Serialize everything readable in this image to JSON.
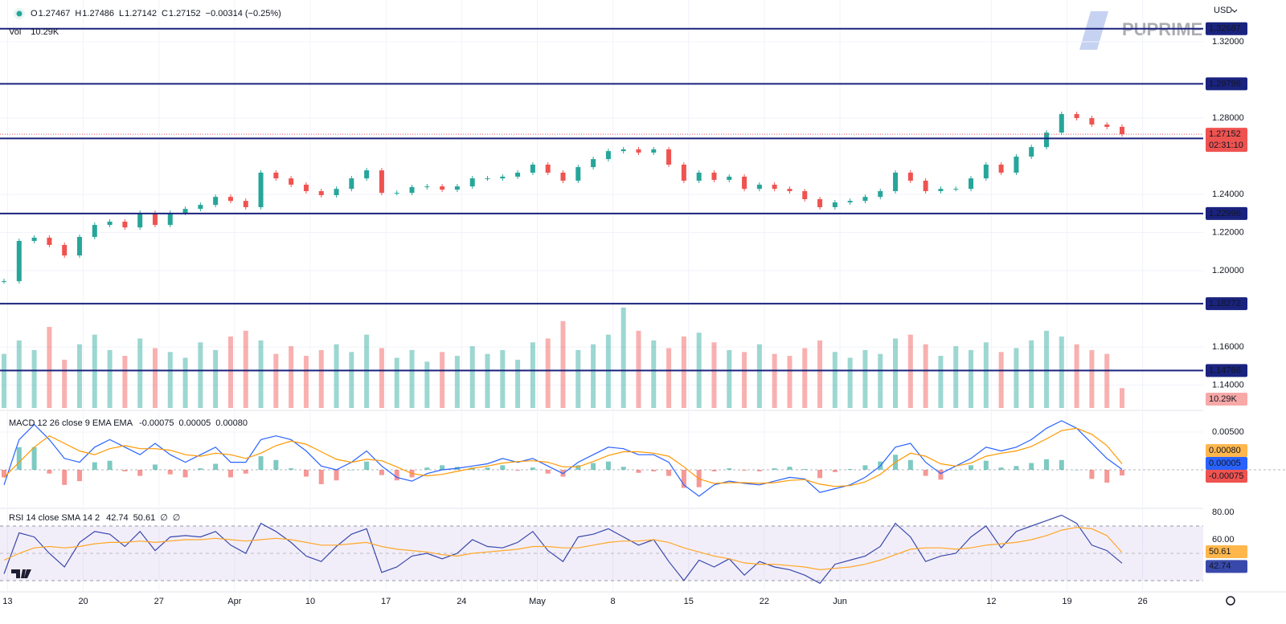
{
  "chart_data": [
    {
      "type": "candlestick",
      "legend": [
        {
          "label": "O",
          "value": "1.27467"
        },
        {
          "label": "H",
          "value": "1.27486"
        },
        {
          "label": "L",
          "value": "1.27142"
        },
        {
          "label": "C",
          "value": "1.27152"
        }
      ],
      "change": "−0.00314 (−0.25%)",
      "volume_title": "Vol",
      "volume_last_label": "10.29K",
      "currency": "USD",
      "watermark": "PUPRIME",
      "countdown": "02:31:10",
      "up_color": "#26a69a",
      "down_color": "#ef5350",
      "level_color": "#1a237e",
      "closes": [
        1.1945,
        1.2156,
        1.2173,
        1.2135,
        1.208,
        1.2177,
        1.224,
        1.2257,
        1.2227,
        1.2303,
        1.224,
        1.2303,
        1.2324,
        1.2345,
        1.2387,
        1.2366,
        1.2333,
        1.2514,
        1.2484,
        1.2451,
        1.2417,
        1.2396,
        1.2429,
        1.2484,
        1.2526,
        1.2408,
        1.2408,
        1.2438,
        1.2442,
        1.2425,
        1.2442,
        1.2484,
        1.2484,
        1.2493,
        1.2514,
        1.2556,
        1.2514,
        1.2472,
        1.2543,
        1.2585,
        1.2627,
        1.2636,
        1.2619,
        1.2636,
        1.2556,
        1.2472,
        1.2514,
        1.2476,
        1.2493,
        1.2429,
        1.2451,
        1.2429,
        1.2417,
        1.2375,
        1.2333,
        1.2358,
        1.2366,
        1.2387,
        1.2417,
        1.2514,
        1.2472,
        1.2417,
        1.2429,
        1.2429,
        1.2484,
        1.2556,
        1.2514,
        1.2598,
        1.2648,
        1.2724,
        1.2821,
        1.28,
        1.2766,
        1.2754,
        1.27152
      ],
      "volumes": [
        28,
        35,
        30,
        42,
        25,
        33,
        38,
        30,
        27,
        36,
        31,
        29,
        26,
        34,
        30,
        37,
        40,
        35,
        28,
        32,
        27,
        30,
        33,
        29,
        38,
        31,
        26,
        30,
        24,
        29,
        27,
        32,
        28,
        30,
        25,
        34,
        36,
        45,
        30,
        33,
        38,
        52,
        40,
        35,
        31,
        37,
        39,
        34,
        30,
        29,
        33,
        28,
        27,
        31,
        35,
        29,
        26,
        30,
        28,
        36,
        38,
        33,
        27,
        32,
        30,
        34,
        29,
        31,
        35,
        40,
        37,
        33,
        30,
        28,
        10.29
      ],
      "levels": [
        1.32687,
        1.29796,
        1.26931,
        1.22996,
        1.18272,
        1.14766
      ],
      "ylim": [
        1.1272,
        1.3419
      ],
      "yticks": [
        {
          "value": 1.32,
          "label": "1.32000"
        },
        {
          "value": 1.28,
          "label": "1.28000"
        },
        {
          "value": 1.24,
          "label": "1.24000"
        },
        {
          "value": 1.22,
          "label": "1.22000"
        },
        {
          "value": 1.2,
          "label": "1.20000"
        },
        {
          "value": 1.16,
          "label": "1.16000"
        },
        {
          "value": 1.14,
          "label": "1.14000"
        }
      ],
      "xlim": [
        -0.1,
        15.8
      ],
      "xticks": [
        {
          "value": 0,
          "label": "13"
        },
        {
          "value": 1,
          "label": "20"
        },
        {
          "value": 2,
          "label": "27"
        },
        {
          "value": 3,
          "label": "Apr"
        },
        {
          "value": 4,
          "label": "10"
        },
        {
          "value": 5,
          "label": "17"
        },
        {
          "value": 6,
          "label": "24"
        },
        {
          "value": 7,
          "label": "May"
        },
        {
          "value": 8,
          "label": "8"
        },
        {
          "value": 9,
          "label": "15"
        },
        {
          "value": 10,
          "label": "22"
        },
        {
          "value": 11,
          "label": "Jun"
        },
        {
          "value": 13,
          "label": "12"
        },
        {
          "value": 14,
          "label": "19"
        },
        {
          "value": 15,
          "label": "26"
        }
      ],
      "grid": true
    },
    {
      "type": "macd",
      "title": "MACD 12 26 close 9 EMA EMA",
      "ylim": [
        -0.005,
        0.00777
      ],
      "yticks": [
        {
          "value": 0.005,
          "label": "0.00500"
        }
      ],
      "zero_line": 0,
      "series": [
        {
          "kind": "histogram",
          "color": "#ef5350",
          "up_color": "#26a69a",
          "last_label": "-0.00075",
          "values": [
            -0.001,
            0.003,
            0.003,
            -0.0005,
            -0.002,
            -0.0015,
            0.001,
            0.0012,
            -0.0002,
            -0.0008,
            0.0007,
            -0.0006,
            -0.001,
            0.0002,
            0.0008,
            -0.001,
            -0.0005,
            0.0018,
            0.0013,
            0.0002,
            -0.0009,
            -0.0019,
            -0.0014,
            0,
            0.0011,
            -0.0007,
            -0.0014,
            -0.001,
            0.0003,
            0.0006,
            0.0004,
            0.0003,
            0.0003,
            0.0006,
            -0.0001,
            0.0003,
            -0.0005,
            -0.0009,
            0.0006,
            0.0009,
            0.0011,
            0.0004,
            -0.0004,
            -0.0002,
            -0.0008,
            -0.0024,
            -0.0023,
            -0.0002,
            0.0002,
            -0.0001,
            -0.0002,
            0.0002,
            0.0004,
            0.0001,
            -0.0011,
            -0.0003,
            0.0001,
            0.0006,
            0.0011,
            0.002,
            0.0013,
            -0.0008,
            -0.0013,
            0,
            0.0006,
            0.0012,
            0.0003,
            0.0005,
            0.0009,
            0.0014,
            0.0013,
            0,
            -0.0012,
            -0.0017,
            -0.00075
          ]
        },
        {
          "kind": "line",
          "color": "#2962ff",
          "last_label": "0.00005",
          "values": [
            -0.002,
            0.004,
            0.006,
            0.004,
            0.0015,
            0.001,
            0.003,
            0.004,
            0.003,
            0.002,
            0.0035,
            0.002,
            0.001,
            0.002,
            0.003,
            0.001,
            0.001,
            0.004,
            0.0045,
            0.004,
            0.0025,
            0.0005,
            0,
            0.001,
            0.0025,
            0.0005,
            -0.001,
            -0.0015,
            -0.0005,
            0,
            0.0002,
            0.0005,
            0.0008,
            0.0015,
            0.001,
            0.0015,
            0.0005,
            -0.0005,
            0.001,
            0.002,
            0.003,
            0.0028,
            0.002,
            0.002,
            0.001,
            -0.002,
            -0.0035,
            -0.002,
            -0.0015,
            -0.0018,
            -0.002,
            -0.0015,
            -0.001,
            -0.0012,
            -0.003,
            -0.0025,
            -0.002,
            -0.001,
            0.0005,
            0.003,
            0.0035,
            0.001,
            -0.0005,
            0.0005,
            0.0015,
            0.003,
            0.0025,
            0.003,
            0.004,
            0.0055,
            0.0065,
            0.0055,
            0.0035,
            0.0015,
            5e-05
          ]
        },
        {
          "kind": "line",
          "color": "#ff9800",
          "last_label": "0.00080",
          "values": [
            -0.001,
            0.001,
            0.003,
            0.0045,
            0.0035,
            0.0025,
            0.002,
            0.0028,
            0.0032,
            0.0028,
            0.0028,
            0.0026,
            0.002,
            0.0018,
            0.0022,
            0.002,
            0.0015,
            0.0022,
            0.0032,
            0.0038,
            0.0034,
            0.0024,
            0.0014,
            0.001,
            0.0014,
            0.0012,
            0.0004,
            -0.0005,
            -0.0008,
            -0.0006,
            -0.0002,
            0.0002,
            0.0005,
            0.0009,
            0.0011,
            0.0012,
            0.001,
            0.0004,
            0.0004,
            0.0011,
            0.0019,
            0.0024,
            0.0024,
            0.0022,
            0.0018,
            0.0004,
            -0.0012,
            -0.0018,
            -0.0017,
            -0.0017,
            -0.0018,
            -0.0017,
            -0.0014,
            -0.0013,
            -0.0019,
            -0.0022,
            -0.0021,
            -0.0016,
            -0.0006,
            0.001,
            0.0022,
            0.0018,
            0.0008,
            0.0005,
            0.0009,
            0.0018,
            0.0022,
            0.0025,
            0.0031,
            0.0041,
            0.0052,
            0.0055,
            0.0047,
            0.0032,
            0.0008
          ]
        }
      ]
    },
    {
      "type": "rsi",
      "title": "RSI 14 close SMA 14 2",
      "na_labels": [
        "∅",
        "∅"
      ],
      "ylim": [
        22.9,
        82.4
      ],
      "yticks": [
        {
          "value": 80,
          "label": "80.00"
        },
        {
          "value": 60,
          "label": "60.00"
        }
      ],
      "band": [
        30,
        70
      ],
      "midline": 50,
      "band_color": "#7e57c2",
      "series": [
        {
          "color": "#3949ab",
          "values": [
            35,
            65,
            62,
            50,
            40,
            58,
            66,
            64,
            55,
            66,
            52,
            62,
            63,
            62,
            66,
            56,
            50,
            72,
            66,
            58,
            48,
            44,
            55,
            64,
            68,
            36,
            40,
            48,
            50,
            46,
            50,
            60,
            55,
            54,
            58,
            66,
            52,
            44,
            62,
            64,
            68,
            62,
            56,
            60,
            44,
            30,
            45,
            40,
            46,
            34,
            44,
            40,
            38,
            34,
            28,
            42,
            45,
            48,
            55,
            72,
            62,
            44,
            48,
            50,
            62,
            70,
            54,
            66,
            70,
            74,
            78,
            72,
            56,
            52,
            42.74
          ]
        },
        {
          "color": "#ffa726",
          "values": [
            45,
            50,
            54,
            55,
            54,
            55,
            57,
            58,
            58,
            59,
            58,
            59,
            60,
            60,
            61,
            60,
            59,
            60,
            61,
            60,
            58,
            56,
            56,
            57,
            58,
            55,
            53,
            52,
            51,
            49,
            48,
            50,
            51,
            52,
            53,
            55,
            55,
            54,
            54,
            56,
            58,
            59,
            59,
            60,
            58,
            54,
            51,
            48,
            46,
            43,
            42,
            42,
            41,
            40,
            38,
            39,
            40,
            42,
            45,
            49,
            53,
            54,
            54,
            53,
            54,
            56,
            57,
            58,
            60,
            63,
            67,
            69,
            68,
            63,
            50.61
          ]
        }
      ]
    }
  ]
}
